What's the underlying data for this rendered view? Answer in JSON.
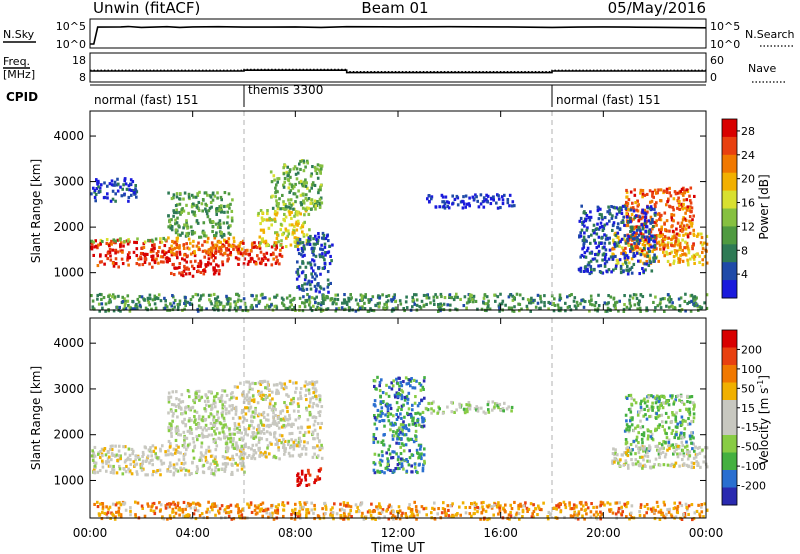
{
  "header": {
    "station": "Unwin (fitACF)",
    "beam": "Beam 01",
    "date": "05/May/2016"
  },
  "colors": {
    "power": [
      "#1a1adc",
      "#1f4aa8",
      "#2e7a55",
      "#4f9a40",
      "#86c040",
      "#d8e030",
      "#f2b000",
      "#f07800",
      "#e84010",
      "#d80000"
    ],
    "velocity": [
      "#2a2ab0",
      "#2a6fd0",
      "#44b040",
      "#88cc44",
      "#c8c8c0",
      "#c8c8c0",
      "#f0b000",
      "#f07800",
      "#e84010",
      "#d80000"
    ],
    "grey": "#c8c8c0",
    "guide": "#b0b0b0"
  },
  "chart_data": [
    {
      "type": "line",
      "name_left": "N.Sky",
      "name_right": "N.Search",
      "y_ticks_left": [
        "10^5",
        "10^0"
      ],
      "y_ticks_right": [
        "10^5",
        "10^0"
      ],
      "x": [
        0,
        0.15,
        0.3,
        1.2,
        1.5,
        2.0,
        3.0,
        3.5,
        4.0,
        5.0,
        6.0,
        7.0,
        8.0,
        9.0,
        10.0,
        12.0,
        14.0,
        16.0,
        18.0,
        19.0,
        20.0,
        21.0,
        22.0,
        23.0,
        24.0
      ],
      "values": [
        0,
        0,
        4.7,
        4.75,
        4.85,
        4.6,
        4.8,
        4.6,
        4.75,
        4.8,
        4.7,
        4.7,
        4.75,
        4.6,
        4.8,
        4.75,
        4.8,
        4.75,
        4.6,
        4.7,
        4.75,
        4.7,
        4.65,
        4.55,
        4.5
      ]
    },
    {
      "type": "line",
      "name_left": "Freq.",
      "unit_left": "[MHz]",
      "name_right": "Nave",
      "y_ticks_left": [
        "18",
        "8"
      ],
      "y_ticks_right": [
        "60",
        "0"
      ],
      "freq": {
        "x": [
          0,
          6,
          6,
          10,
          10,
          18,
          18,
          24
        ],
        "values": [
          11.5,
          11.5,
          12.0,
          12.0,
          10.6,
          10.6,
          11.5,
          11.5
        ]
      },
      "nave": {
        "x": [
          0,
          6,
          6,
          10,
          10,
          18,
          18,
          24
        ],
        "values": [
          24,
          24,
          27,
          27,
          19,
          19,
          24,
          24
        ]
      }
    },
    {
      "type": "table",
      "label": "CPID",
      "segments": [
        {
          "start": 0,
          "end": 6,
          "text": "normal (fast) 151"
        },
        {
          "start": 6,
          "end": 18,
          "text": "themis 3300"
        },
        {
          "start": 18,
          "end": 24,
          "text": "normal (fast) 151"
        }
      ]
    },
    {
      "type": "heatmap",
      "quantity": "power",
      "ylabel": "Slant Range [km]",
      "yticks": [
        1000,
        2000,
        3000,
        4000
      ],
      "ylim": [
        180,
        4550
      ],
      "colorbar": {
        "label": "Power [dB]",
        "ticks": [
          4,
          8,
          12,
          16,
          20,
          24,
          28
        ],
        "range": [
          0,
          30
        ]
      },
      "regions": [
        {
          "t0": 0.0,
          "t1": 3.0,
          "r0": 1150,
          "r1": 1750,
          "level": 0.9
        },
        {
          "t0": 0.0,
          "t1": 3.0,
          "r0": 1700,
          "r1": 1800,
          "level": 0.45
        },
        {
          "t0": 3.0,
          "t1": 5.0,
          "r0": 950,
          "r1": 1500,
          "level": 0.95
        },
        {
          "t0": 3.0,
          "t1": 6.0,
          "r0": 1400,
          "r1": 1800,
          "level": 0.75
        },
        {
          "t0": 3.0,
          "t1": 5.5,
          "r0": 1800,
          "r1": 2800,
          "level": 0.35
        },
        {
          "t0": 5.0,
          "t1": 7.5,
          "r0": 1200,
          "r1": 1700,
          "level": 0.9
        },
        {
          "t0": 6.5,
          "t1": 8.5,
          "r0": 1600,
          "r1": 2400,
          "level": 0.55
        },
        {
          "t0": 7.0,
          "t1": 9.0,
          "r0": 2400,
          "r1": 3500,
          "level": 0.4
        },
        {
          "t0": 8.0,
          "t1": 9.4,
          "r0": 600,
          "r1": 1900,
          "level": 0.15
        },
        {
          "t0": 0.0,
          "t1": 1.8,
          "r0": 2600,
          "r1": 3100,
          "level": 0.1
        },
        {
          "t0": 13.0,
          "t1": 16.5,
          "r0": 2450,
          "r1": 2750,
          "level": 0.05
        },
        {
          "t0": 20.3,
          "t1": 24.0,
          "r0": 1200,
          "r1": 1900,
          "level": 0.65
        },
        {
          "t0": 20.8,
          "t1": 23.5,
          "r0": 1500,
          "r1": 2900,
          "level": 0.8
        },
        {
          "t0": 19.0,
          "t1": 22.0,
          "r0": 1000,
          "r1": 2500,
          "level": 0.15
        },
        {
          "t0": 0.0,
          "t1": 24.0,
          "r0": 180,
          "r1": 560,
          "level": 0.3
        }
      ]
    },
    {
      "type": "heatmap",
      "quantity": "velocity",
      "ylabel": "Slant Range [km]",
      "xlabel": "Time UT",
      "xticks": [
        "00:00",
        "04:00",
        "08:00",
        "12:00",
        "16:00",
        "20:00",
        "00:00"
      ],
      "yticks": [
        1000,
        2000,
        3000,
        4000
      ],
      "ylim": [
        180,
        4550
      ],
      "colorbar": {
        "label": "Velocity [m s^-1]",
        "ticks": [
          200,
          100,
          50,
          15,
          -15,
          -50,
          -100,
          -200
        ],
        "range": [
          -250,
          250
        ]
      },
      "regions": [
        {
          "t0": 0.0,
          "t1": 6.0,
          "r0": 1150,
          "r1": 1800,
          "level": 0.5
        },
        {
          "t0": 5.5,
          "t1": 9.0,
          "r0": 1500,
          "r1": 3200,
          "level": 0.5
        },
        {
          "t0": 3.0,
          "t1": 5.5,
          "r0": 1800,
          "r1": 3000,
          "level": 0.45
        },
        {
          "t0": 8.0,
          "t1": 9.0,
          "r0": 900,
          "r1": 1300,
          "level": 0.95
        },
        {
          "t0": 11.0,
          "t1": 13.0,
          "r0": 1200,
          "r1": 3300,
          "level": 0.2
        },
        {
          "t0": 13.0,
          "t1": 16.5,
          "r0": 2500,
          "r1": 2750,
          "level": 0.4
        },
        {
          "t0": 20.8,
          "t1": 23.5,
          "r0": 1600,
          "r1": 2900,
          "level": 0.3
        },
        {
          "t0": 20.3,
          "t1": 24.0,
          "r0": 1300,
          "r1": 1800,
          "level": 0.5
        },
        {
          "t0": 0.0,
          "t1": 24.0,
          "r0": 180,
          "r1": 560,
          "level": 0.7
        }
      ]
    }
  ]
}
